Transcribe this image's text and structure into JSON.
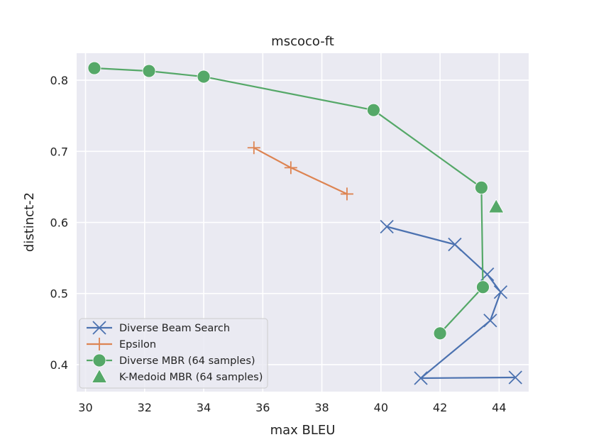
{
  "chart_data": {
    "type": "line",
    "title": "mscoco-ft",
    "xlabel": "max BLEU",
    "ylabel": "distinct-2",
    "xlim": [
      29.7,
      45.0
    ],
    "ylim": [
      0.362,
      0.838
    ],
    "x_ticks": [
      30,
      32,
      34,
      36,
      38,
      40,
      42,
      44
    ],
    "x_tick_labels": [
      "30",
      "32",
      "34",
      "36",
      "38",
      "40",
      "42",
      "44"
    ],
    "y_ticks": [
      0.4,
      0.5,
      0.6,
      0.7,
      0.8
    ],
    "y_tick_labels": [
      "0.4",
      "0.5",
      "0.6",
      "0.7",
      "0.8"
    ],
    "grid": true,
    "background_color": "#eaeaf2",
    "legend_position": "lower left",
    "series": [
      {
        "name": "Diverse Beam Search",
        "color": "#4c72b0",
        "marker": "x",
        "x": [
          40.2,
          42.5,
          43.6,
          44.05,
          43.7,
          41.35,
          44.55
        ],
        "y": [
          0.594,
          0.569,
          0.527,
          0.502,
          0.462,
          0.381,
          0.382
        ]
      },
      {
        "name": "Epsilon",
        "color": "#dd8452",
        "marker": "+",
        "x": [
          35.7,
          36.95,
          38.85
        ],
        "y": [
          0.705,
          0.677,
          0.64
        ]
      },
      {
        "name": "Diverse MBR (64 samples)",
        "color": "#55a868",
        "marker": "circle",
        "x": [
          30.3,
          32.15,
          34.0,
          39.75,
          43.4,
          43.45,
          42.0
        ],
        "y": [
          0.817,
          0.813,
          0.805,
          0.758,
          0.649,
          0.509,
          0.444
        ]
      },
      {
        "name": "K-Medoid MBR (64 samples)",
        "color": "#55a868",
        "marker": "triangle",
        "x": [
          43.9
        ],
        "y": [
          0.622
        ]
      }
    ]
  }
}
